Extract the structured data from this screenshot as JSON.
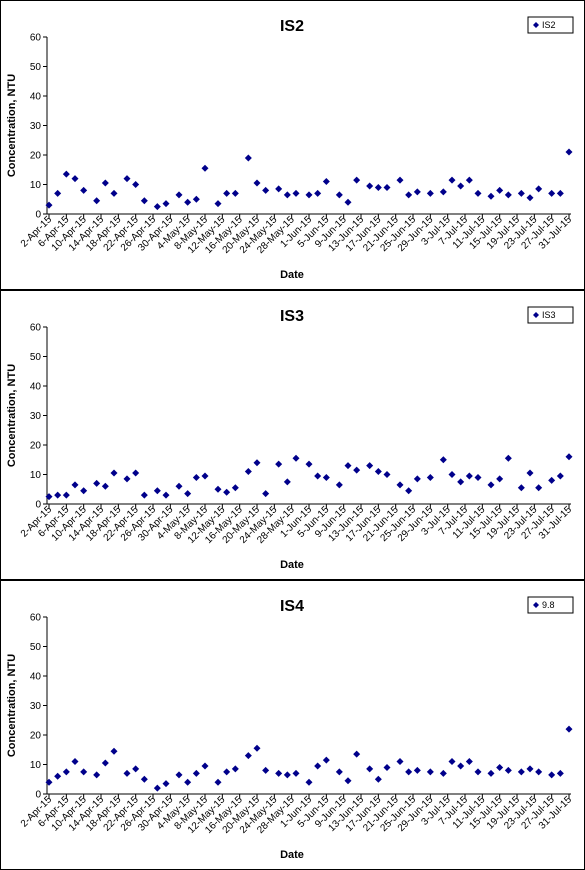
{
  "chart_data": [
    {
      "type": "scatter",
      "title": "IS2",
      "xlabel": "Date",
      "ylabel": "Concentration, NTU",
      "ylim": [
        0,
        60
      ],
      "yticks": [
        "0",
        "10",
        "20",
        "30",
        "40",
        "50",
        "60"
      ],
      "grid": false,
      "legend_position": "top-right",
      "marker_color": "#00008B",
      "x_tick_labels": [
        "2-Apr-15",
        "6-Apr-15",
        "10-Apr-15",
        "14-Apr-15",
        "18-Apr-15",
        "22-Apr-15",
        "26-Apr-15",
        "30-Apr-15",
        "4-May-15",
        "8-May-15",
        "12-May-15",
        "16-May-15",
        "20-May-15",
        "24-May-15",
        "28-May-15",
        "1-Jun-15",
        "5-Jun-15",
        "9-Jun-15",
        "13-Jun-15",
        "17-Jun-15",
        "21-Jun-15",
        "25-Jun-15",
        "29-Jun-15",
        "3-Jul-15",
        "7-Jul-15",
        "11-Jul-15",
        "15-Jul-15",
        "19-Jul-15",
        "23-Jul-15",
        "27-Jul-15",
        "31-Jul-15"
      ],
      "series": [
        {
          "name": "IS2",
          "points": [
            {
              "x": "2-Apr-15",
              "y": 3
            },
            {
              "x": "4-Apr-15",
              "y": 7
            },
            {
              "x": "6-Apr-15",
              "y": 13.5
            },
            {
              "x": "8-Apr-15",
              "y": 12
            },
            {
              "x": "10-Apr-15",
              "y": 8
            },
            {
              "x": "13-Apr-15",
              "y": 4.5
            },
            {
              "x": "15-Apr-15",
              "y": 10.5
            },
            {
              "x": "17-Apr-15",
              "y": 7
            },
            {
              "x": "20-Apr-15",
              "y": 12
            },
            {
              "x": "22-Apr-15",
              "y": 10
            },
            {
              "x": "24-Apr-15",
              "y": 4.5
            },
            {
              "x": "27-Apr-15",
              "y": 2.5
            },
            {
              "x": "29-Apr-15",
              "y": 3.5
            },
            {
              "x": "2-May-15",
              "y": 6.5
            },
            {
              "x": "4-May-15",
              "y": 4
            },
            {
              "x": "6-May-15",
              "y": 5
            },
            {
              "x": "8-May-15",
              "y": 15.5
            },
            {
              "x": "11-May-15",
              "y": 3.5
            },
            {
              "x": "13-May-15",
              "y": 7
            },
            {
              "x": "15-May-15",
              "y": 7
            },
            {
              "x": "18-May-15",
              "y": 19
            },
            {
              "x": "20-May-15",
              "y": 10.5
            },
            {
              "x": "22-May-15",
              "y": 8
            },
            {
              "x": "25-May-15",
              "y": 8.5
            },
            {
              "x": "27-May-15",
              "y": 6.5
            },
            {
              "x": "29-May-15",
              "y": 7
            },
            {
              "x": "1-Jun-15",
              "y": 6.5
            },
            {
              "x": "3-Jun-15",
              "y": 7
            },
            {
              "x": "5-Jun-15",
              "y": 11
            },
            {
              "x": "8-Jun-15",
              "y": 6.5
            },
            {
              "x": "10-Jun-15",
              "y": 4
            },
            {
              "x": "12-Jun-15",
              "y": 11.5
            },
            {
              "x": "15-Jun-15",
              "y": 9.5
            },
            {
              "x": "17-Jun-15",
              "y": 9
            },
            {
              "x": "19-Jun-15",
              "y": 9
            },
            {
              "x": "22-Jun-15",
              "y": 11.5
            },
            {
              "x": "24-Jun-15",
              "y": 6.5
            },
            {
              "x": "26-Jun-15",
              "y": 7.5
            },
            {
              "x": "29-Jun-15",
              "y": 7
            },
            {
              "x": "2-Jul-15",
              "y": 7.5
            },
            {
              "x": "4-Jul-15",
              "y": 11.5
            },
            {
              "x": "6-Jul-15",
              "y": 9.5
            },
            {
              "x": "8-Jul-15",
              "y": 11.5
            },
            {
              "x": "10-Jul-15",
              "y": 7
            },
            {
              "x": "13-Jul-15",
              "y": 6
            },
            {
              "x": "15-Jul-15",
              "y": 8
            },
            {
              "x": "17-Jul-15",
              "y": 6.5
            },
            {
              "x": "20-Jul-15",
              "y": 7
            },
            {
              "x": "22-Jul-15",
              "y": 5.5
            },
            {
              "x": "24-Jul-15",
              "y": 8.5
            },
            {
              "x": "27-Jul-15",
              "y": 7
            },
            {
              "x": "29-Jul-15",
              "y": 7
            },
            {
              "x": "31-Jul-15",
              "y": 21
            }
          ]
        }
      ]
    },
    {
      "type": "scatter",
      "title": "IS3",
      "xlabel": "Date",
      "ylabel": "Concentration, NTU",
      "ylim": [
        0,
        60
      ],
      "yticks": [
        "0",
        "10",
        "20",
        "30",
        "40",
        "50",
        "60"
      ],
      "grid": false,
      "legend_position": "top-right",
      "marker_color": "#00008B",
      "x_tick_labels": [
        "2-Apr-15",
        "6-Apr-15",
        "10-Apr-15",
        "14-Apr-15",
        "18-Apr-15",
        "22-Apr-15",
        "26-Apr-15",
        "30-Apr-15",
        "4-May-15",
        "8-May-15",
        "12-May-15",
        "16-May-15",
        "20-May-15",
        "24-May-15",
        "28-May-15",
        "1-Jun-15",
        "5-Jun-15",
        "9-Jun-15",
        "13-Jun-15",
        "17-Jun-15",
        "21-Jun-15",
        "25-Jun-15",
        "29-Jun-15",
        "3-Jul-15",
        "7-Jul-15",
        "11-Jul-15",
        "15-Jul-15",
        "19-Jul-15",
        "23-Jul-15",
        "27-Jul-15",
        "31-Jul-15"
      ],
      "series": [
        {
          "name": "IS3",
          "points": [
            {
              "x": "2-Apr-15",
              "y": 2.5
            },
            {
              "x": "4-Apr-15",
              "y": 3
            },
            {
              "x": "6-Apr-15",
              "y": 3
            },
            {
              "x": "8-Apr-15",
              "y": 6.5
            },
            {
              "x": "10-Apr-15",
              "y": 4.5
            },
            {
              "x": "13-Apr-15",
              "y": 7
            },
            {
              "x": "15-Apr-15",
              "y": 6
            },
            {
              "x": "17-Apr-15",
              "y": 10.5
            },
            {
              "x": "20-Apr-15",
              "y": 8.5
            },
            {
              "x": "22-Apr-15",
              "y": 10.5
            },
            {
              "x": "24-Apr-15",
              "y": 3
            },
            {
              "x": "27-Apr-15",
              "y": 4.5
            },
            {
              "x": "29-Apr-15",
              "y": 3
            },
            {
              "x": "2-May-15",
              "y": 6
            },
            {
              "x": "4-May-15",
              "y": 3.5
            },
            {
              "x": "6-May-15",
              "y": 9
            },
            {
              "x": "8-May-15",
              "y": 9.5
            },
            {
              "x": "11-May-15",
              "y": 5
            },
            {
              "x": "13-May-15",
              "y": 4
            },
            {
              "x": "15-May-15",
              "y": 5.5
            },
            {
              "x": "18-May-15",
              "y": 11
            },
            {
              "x": "20-May-15",
              "y": 14
            },
            {
              "x": "22-May-15",
              "y": 3.5
            },
            {
              "x": "25-May-15",
              "y": 13.5
            },
            {
              "x": "27-May-15",
              "y": 7.5
            },
            {
              "x": "29-May-15",
              "y": 15.5
            },
            {
              "x": "1-Jun-15",
              "y": 13.5
            },
            {
              "x": "3-Jun-15",
              "y": 9.5
            },
            {
              "x": "5-Jun-15",
              "y": 9
            },
            {
              "x": "8-Jun-15",
              "y": 6.5
            },
            {
              "x": "10-Jun-15",
              "y": 13
            },
            {
              "x": "12-Jun-15",
              "y": 11.5
            },
            {
              "x": "15-Jun-15",
              "y": 13
            },
            {
              "x": "17-Jun-15",
              "y": 11
            },
            {
              "x": "19-Jun-15",
              "y": 10
            },
            {
              "x": "22-Jun-15",
              "y": 6.5
            },
            {
              "x": "24-Jun-15",
              "y": 4.5
            },
            {
              "x": "26-Jun-15",
              "y": 8.5
            },
            {
              "x": "29-Jun-15",
              "y": 9
            },
            {
              "x": "2-Jul-15",
              "y": 15
            },
            {
              "x": "4-Jul-15",
              "y": 10
            },
            {
              "x": "6-Jul-15",
              "y": 7.5
            },
            {
              "x": "8-Jul-15",
              "y": 9.5
            },
            {
              "x": "10-Jul-15",
              "y": 9
            },
            {
              "x": "13-Jul-15",
              "y": 6.5
            },
            {
              "x": "15-Jul-15",
              "y": 8.5
            },
            {
              "x": "17-Jul-15",
              "y": 15.5
            },
            {
              "x": "20-Jul-15",
              "y": 5.5
            },
            {
              "x": "22-Jul-15",
              "y": 10.5
            },
            {
              "x": "24-Jul-15",
              "y": 5.5
            },
            {
              "x": "27-Jul-15",
              "y": 8
            },
            {
              "x": "29-Jul-15",
              "y": 9.5
            },
            {
              "x": "31-Jul-15",
              "y": 16
            }
          ]
        }
      ]
    },
    {
      "type": "scatter",
      "title": "IS4",
      "xlabel": "Date",
      "ylabel": "Concentration, NTU",
      "ylim": [
        0,
        60
      ],
      "yticks": [
        "0",
        "10",
        "20",
        "30",
        "40",
        "50",
        "60"
      ],
      "grid": false,
      "legend_position": "top-right",
      "marker_color": "#00008B",
      "x_tick_labels": [
        "2-Apr-15",
        "6-Apr-15",
        "10-Apr-15",
        "14-Apr-15",
        "18-Apr-15",
        "22-Apr-15",
        "26-Apr-15",
        "30-Apr-15",
        "4-May-15",
        "8-May-15",
        "12-May-15",
        "16-May-15",
        "20-May-15",
        "24-May-15",
        "28-May-15",
        "1-Jun-15",
        "5-Jun-15",
        "9-Jun-15",
        "13-Jun-15",
        "17-Jun-15",
        "21-Jun-15",
        "25-Jun-15",
        "29-Jun-15",
        "3-Jul-15",
        "7-Jul-15",
        "11-Jul-15",
        "15-Jul-15",
        "19-Jul-15",
        "23-Jul-15",
        "27-Jul-15",
        "31-Jul-15"
      ],
      "series": [
        {
          "name": "9.8",
          "points": [
            {
              "x": "2-Apr-15",
              "y": 4
            },
            {
              "x": "4-Apr-15",
              "y": 6
            },
            {
              "x": "6-Apr-15",
              "y": 7.5
            },
            {
              "x": "8-Apr-15",
              "y": 11
            },
            {
              "x": "10-Apr-15",
              "y": 7.5
            },
            {
              "x": "13-Apr-15",
              "y": 6.5
            },
            {
              "x": "15-Apr-15",
              "y": 10.5
            },
            {
              "x": "17-Apr-15",
              "y": 14.5
            },
            {
              "x": "20-Apr-15",
              "y": 7
            },
            {
              "x": "22-Apr-15",
              "y": 8.5
            },
            {
              "x": "24-Apr-15",
              "y": 5
            },
            {
              "x": "27-Apr-15",
              "y": 2
            },
            {
              "x": "29-Apr-15",
              "y": 3.5
            },
            {
              "x": "2-May-15",
              "y": 6.5
            },
            {
              "x": "4-May-15",
              "y": 4
            },
            {
              "x": "6-May-15",
              "y": 7
            },
            {
              "x": "8-May-15",
              "y": 9.5
            },
            {
              "x": "11-May-15",
              "y": 4
            },
            {
              "x": "13-May-15",
              "y": 7.5
            },
            {
              "x": "15-May-15",
              "y": 8.5
            },
            {
              "x": "18-May-15",
              "y": 13
            },
            {
              "x": "20-May-15",
              "y": 15.5
            },
            {
              "x": "22-May-15",
              "y": 8
            },
            {
              "x": "25-May-15",
              "y": 7
            },
            {
              "x": "27-May-15",
              "y": 6.5
            },
            {
              "x": "29-May-15",
              "y": 7
            },
            {
              "x": "1-Jun-15",
              "y": 4
            },
            {
              "x": "3-Jun-15",
              "y": 9.5
            },
            {
              "x": "5-Jun-15",
              "y": 11.5
            },
            {
              "x": "8-Jun-15",
              "y": 7.5
            },
            {
              "x": "10-Jun-15",
              "y": 4.5
            },
            {
              "x": "12-Jun-15",
              "y": 13.5
            },
            {
              "x": "15-Jun-15",
              "y": 8.5
            },
            {
              "x": "17-Jun-15",
              "y": 5
            },
            {
              "x": "19-Jun-15",
              "y": 9
            },
            {
              "x": "22-Jun-15",
              "y": 11
            },
            {
              "x": "24-Jun-15",
              "y": 7.5
            },
            {
              "x": "26-Jun-15",
              "y": 8
            },
            {
              "x": "29-Jun-15",
              "y": 7.5
            },
            {
              "x": "2-Jul-15",
              "y": 7
            },
            {
              "x": "4-Jul-15",
              "y": 11
            },
            {
              "x": "6-Jul-15",
              "y": 9.5
            },
            {
              "x": "8-Jul-15",
              "y": 11
            },
            {
              "x": "10-Jul-15",
              "y": 7.5
            },
            {
              "x": "13-Jul-15",
              "y": 7
            },
            {
              "x": "15-Jul-15",
              "y": 9
            },
            {
              "x": "17-Jul-15",
              "y": 8
            },
            {
              "x": "20-Jul-15",
              "y": 7.5
            },
            {
              "x": "22-Jul-15",
              "y": 8.5
            },
            {
              "x": "24-Jul-15",
              "y": 7.5
            },
            {
              "x": "27-Jul-15",
              "y": 6.5
            },
            {
              "x": "29-Jul-15",
              "y": 7
            },
            {
              "x": "31-Jul-15",
              "y": 22
            }
          ]
        }
      ]
    }
  ]
}
